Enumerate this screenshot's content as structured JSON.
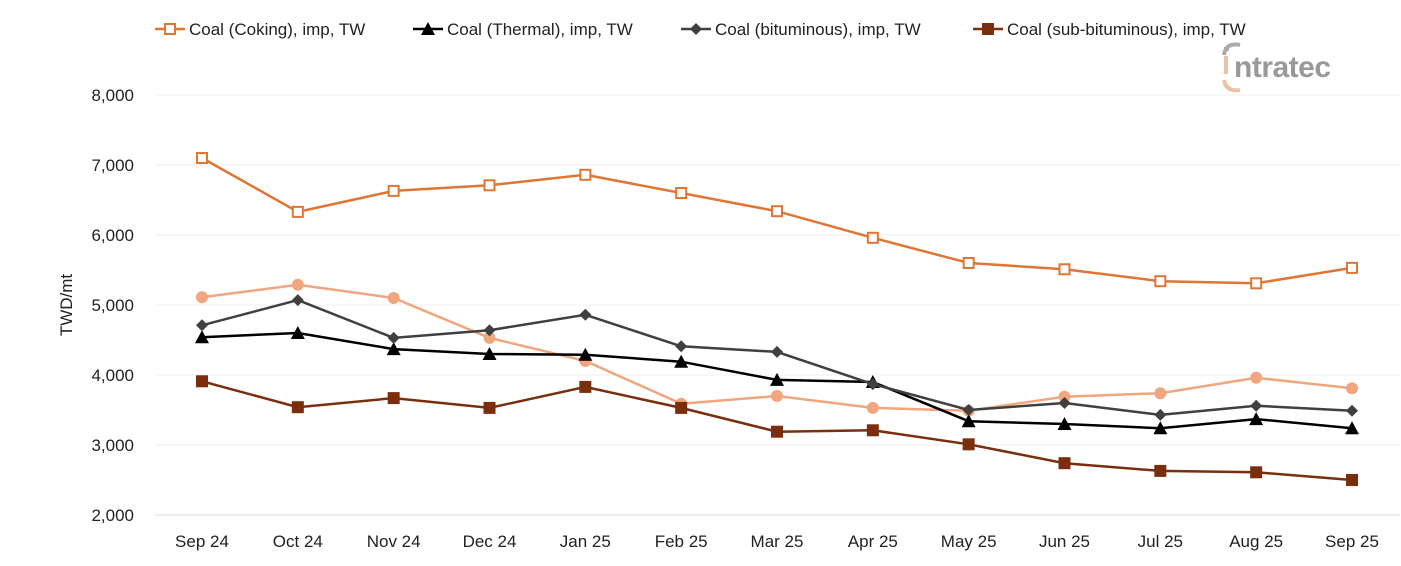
{
  "chart_data": {
    "type": "line",
    "title": "",
    "xlabel": "",
    "ylabel": "TWD/mt",
    "ylim": [
      2000,
      8000
    ],
    "yticks": [
      2000,
      3000,
      4000,
      5000,
      6000,
      7000,
      8000
    ],
    "ytick_labels": [
      "2,000",
      "3,000",
      "4,000",
      "5,000",
      "6,000",
      "7,000",
      "8,000"
    ],
    "grid": "horizontal",
    "legend_placement": "top",
    "categories": [
      "Sep 24",
      "Oct 24",
      "Nov 24",
      "Dec 24",
      "Jan 25",
      "Feb 25",
      "Mar 25",
      "Apr 25",
      "May 25",
      "Jun 25",
      "Jul 25",
      "Aug 25",
      "Sep 25"
    ],
    "series": [
      {
        "name": "Coal (Coking), imp, TW",
        "color": "#E07636",
        "marker": "square-open",
        "in_legend": true,
        "values": [
          7100,
          6330,
          6630,
          6710,
          6860,
          6600,
          6340,
          5960,
          5600,
          5510,
          5340,
          5310,
          5530
        ]
      },
      {
        "color": "#F0A67E",
        "marker": "circle",
        "in_legend": false,
        "values": [
          5110,
          5290,
          5100,
          4530,
          4200,
          3590,
          3700,
          3530,
          3490,
          3690,
          3740,
          3960,
          3810
        ]
      },
      {
        "name": "Coal (Thermal), imp, TW",
        "color": "#000000",
        "marker": "triangle",
        "in_legend": true,
        "values": [
          4540,
          4600,
          4370,
          4300,
          4290,
          4190,
          3930,
          3900,
          3340,
          3300,
          3240,
          3370,
          3240
        ]
      },
      {
        "name": "Coal (bituminous), imp, TW",
        "color": "#404040",
        "marker": "diamond",
        "in_legend": true,
        "values": [
          4710,
          5070,
          4530,
          4640,
          4860,
          4410,
          4330,
          3870,
          3500,
          3600,
          3430,
          3560,
          3490
        ]
      },
      {
        "name": "Coal (sub-bituminous), imp, TW",
        "color": "#7A2E0E",
        "marker": "square",
        "in_legend": true,
        "values": [
          3910,
          3540,
          3670,
          3530,
          3830,
          3530,
          3190,
          3210,
          3010,
          2740,
          2630,
          2610,
          2500
        ]
      }
    ]
  },
  "logo": {
    "text": "intratec"
  }
}
